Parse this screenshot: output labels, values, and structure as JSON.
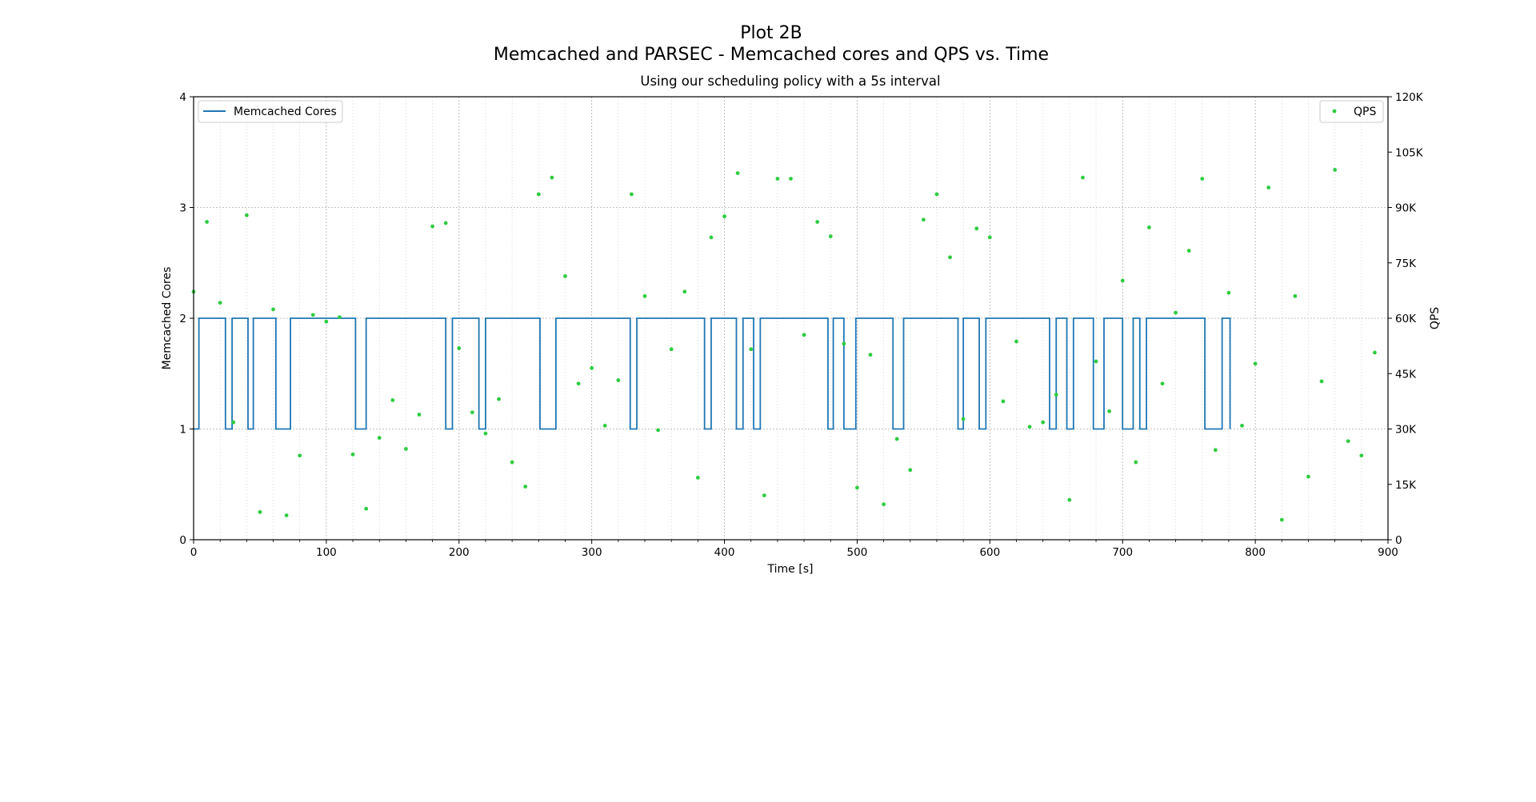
{
  "chart_data": {
    "type": "line",
    "title": "Plot 2B",
    "subtitle": "Memcached and PARSEC - Memcached cores and QPS vs. Time",
    "plot_title": "Using our scheduling policy with a 5s interval",
    "xlabel": "Time [s]",
    "ylabel_left": "Memcached Cores",
    "ylabel_right": "QPS",
    "xlim": [
      0,
      900
    ],
    "ylim_left": [
      0,
      4
    ],
    "ylim_right": [
      0,
      120000
    ],
    "x_ticks": [
      0,
      100,
      200,
      300,
      400,
      500,
      600,
      700,
      800,
      900
    ],
    "x_tick_labels": [
      "0",
      "100",
      "200",
      "300",
      "400",
      "500",
      "600",
      "700",
      "800",
      "900"
    ],
    "y_left_ticks": [
      0,
      1,
      2,
      3,
      4
    ],
    "y_left_tick_labels": [
      "0",
      "1",
      "2",
      "3",
      "4"
    ],
    "y_right_ticks": [
      0,
      15000,
      30000,
      45000,
      60000,
      75000,
      90000,
      105000,
      120000
    ],
    "y_right_tick_labels": [
      "0",
      "15K",
      "30K",
      "45K",
      "60K",
      "75K",
      "90K",
      "105K",
      "120K"
    ],
    "grid": true,
    "colors": {
      "cores": "#1f77b4",
      "qps": "#2ecc40",
      "grid": "#b0b0b0"
    },
    "legend_left": {
      "position": "top-left",
      "label": "Memcached Cores"
    },
    "legend_right": {
      "position": "top-right",
      "label": "QPS"
    },
    "series": [
      {
        "name": "Memcached Cores",
        "type": "step",
        "x": [
          0,
          4,
          24,
          29,
          41,
          45,
          62,
          73,
          122,
          130,
          190,
          195,
          215,
          220,
          261,
          273,
          329,
          334,
          385,
          390,
          409,
          414,
          422,
          427,
          478,
          482,
          490,
          499,
          527,
          535,
          576,
          580,
          592,
          597,
          645,
          650,
          658,
          663,
          678,
          686,
          700,
          708,
          713,
          718,
          762,
          775,
          781
        ],
        "y": [
          1,
          2,
          1,
          2,
          1,
          2,
          1,
          2,
          1,
          2,
          1,
          2,
          1,
          2,
          1,
          2,
          1,
          2,
          1,
          2,
          1,
          2,
          1,
          2,
          1,
          2,
          1,
          2,
          1,
          2,
          1,
          2,
          1,
          2,
          1,
          2,
          1,
          2,
          1,
          2,
          1,
          2,
          1,
          2,
          1,
          2,
          1
        ]
      },
      {
        "name": "QPS",
        "type": "scatter",
        "x": [
          0,
          10,
          20,
          30,
          40,
          50,
          60,
          70,
          80,
          90,
          100,
          110,
          120,
          130,
          140,
          150,
          160,
          170,
          180,
          190,
          200,
          210,
          220,
          230,
          240,
          250,
          260,
          270,
          280,
          290,
          300,
          310,
          320,
          330,
          340,
          350,
          360,
          370,
          380,
          390,
          400,
          410,
          420,
          430,
          440,
          450,
          460,
          470,
          480,
          490,
          500,
          510,
          520,
          530,
          540,
          550,
          560,
          570,
          580,
          590,
          600,
          610,
          620,
          630,
          640,
          650,
          660,
          670,
          680,
          690,
          700,
          710,
          720,
          730,
          740,
          750,
          760,
          770,
          780,
          790,
          800,
          810,
          820,
          830,
          840,
          850,
          860,
          870,
          880,
          890
        ],
        "y": [
          67200,
          86100,
          64200,
          31800,
          87900,
          7500,
          62400,
          6600,
          22800,
          60900,
          59100,
          60300,
          23100,
          8400,
          27600,
          37800,
          24600,
          33900,
          84900,
          85800,
          51900,
          34500,
          28800,
          38100,
          21000,
          14400,
          93600,
          98100,
          71400,
          42300,
          46500,
          30900,
          43200,
          93600,
          66000,
          29700,
          51600,
          67200,
          16800,
          81900,
          87600,
          99300,
          51600,
          12000,
          97800,
          97800,
          55500,
          86100,
          82200,
          53100,
          14100,
          50100,
          9600,
          27300,
          18900,
          86700,
          93600,
          76500,
          32700,
          84300,
          81900,
          37500,
          53700,
          30600,
          31800,
          39300,
          10800,
          98100,
          48300,
          34800,
          70200,
          21000,
          84600,
          42300,
          61500,
          78300,
          97800,
          24300,
          66900,
          30900,
          47700,
          95400,
          5400,
          66000,
          17100,
          42900,
          100200,
          26700,
          22800,
          50700
        ]
      }
    ]
  }
}
